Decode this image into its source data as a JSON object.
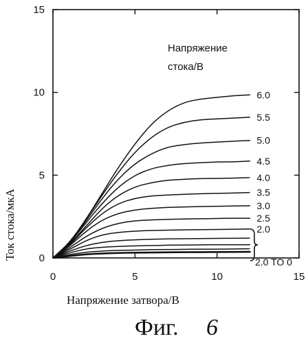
{
  "chart_data": {
    "type": "line",
    "xlabel": "Напряжение затвора/В",
    "ylabel": "Ток стока/мкА",
    "xlim": [
      0,
      15
    ],
    "ylim": [
      0,
      15
    ],
    "xticks": [
      "0",
      "5",
      "10",
      "15"
    ],
    "yticks": [
      "0",
      "5",
      "10",
      "15"
    ],
    "legend_title_line1": "Напряжение",
    "legend_title_line2": "стока/В",
    "caption_text": "Фиг.",
    "caption_number": "6",
    "series": [
      {
        "name": "6.0",
        "values": [
          [
            0,
            0
          ],
          [
            1,
            0.9
          ],
          [
            2,
            2.3
          ],
          [
            3,
            3.9
          ],
          [
            4,
            5.5
          ],
          [
            5,
            6.9
          ],
          [
            6,
            8.1
          ],
          [
            7,
            8.9
          ],
          [
            8,
            9.4
          ],
          [
            9,
            9.6
          ],
          [
            10,
            9.7
          ],
          [
            11,
            9.8
          ],
          [
            12,
            9.85
          ]
        ]
      },
      {
        "name": "5.5",
        "values": [
          [
            0,
            0
          ],
          [
            1,
            0.9
          ],
          [
            2,
            2.3
          ],
          [
            3,
            3.8
          ],
          [
            4,
            5.2
          ],
          [
            5,
            6.4
          ],
          [
            6,
            7.3
          ],
          [
            7,
            7.9
          ],
          [
            8,
            8.2
          ],
          [
            9,
            8.35
          ],
          [
            10,
            8.4
          ],
          [
            11,
            8.45
          ],
          [
            12,
            8.5
          ]
        ]
      },
      {
        "name": "5.0",
        "values": [
          [
            0,
            0
          ],
          [
            1,
            0.9
          ],
          [
            2,
            2.2
          ],
          [
            3,
            3.6
          ],
          [
            4,
            4.8
          ],
          [
            5,
            5.7
          ],
          [
            6,
            6.3
          ],
          [
            7,
            6.7
          ],
          [
            8,
            6.85
          ],
          [
            9,
            6.95
          ],
          [
            10,
            7.0
          ],
          [
            11,
            7.05
          ],
          [
            12,
            7.1
          ]
        ]
      },
      {
        "name": "4.5",
        "values": [
          [
            0,
            0
          ],
          [
            1,
            0.85
          ],
          [
            2,
            2.1
          ],
          [
            3,
            3.3
          ],
          [
            4,
            4.3
          ],
          [
            5,
            5.0
          ],
          [
            6,
            5.4
          ],
          [
            7,
            5.6
          ],
          [
            8,
            5.7
          ],
          [
            9,
            5.75
          ],
          [
            10,
            5.8
          ],
          [
            11,
            5.8
          ],
          [
            12,
            5.85
          ]
        ]
      },
      {
        "name": "4.0",
        "values": [
          [
            0,
            0
          ],
          [
            1,
            0.8
          ],
          [
            2,
            1.9
          ],
          [
            3,
            3.0
          ],
          [
            4,
            3.8
          ],
          [
            5,
            4.3
          ],
          [
            6,
            4.55
          ],
          [
            7,
            4.7
          ],
          [
            8,
            4.75
          ],
          [
            9,
            4.8
          ],
          [
            10,
            4.8
          ],
          [
            11,
            4.82
          ],
          [
            12,
            4.85
          ]
        ]
      },
      {
        "name": "3.5",
        "values": [
          [
            0,
            0
          ],
          [
            1,
            0.75
          ],
          [
            2,
            1.8
          ],
          [
            3,
            2.7
          ],
          [
            4,
            3.3
          ],
          [
            5,
            3.6
          ],
          [
            6,
            3.75
          ],
          [
            7,
            3.8
          ],
          [
            8,
            3.85
          ],
          [
            9,
            3.88
          ],
          [
            10,
            3.9
          ],
          [
            11,
            3.92
          ],
          [
            12,
            3.95
          ]
        ]
      },
      {
        "name": "3.0",
        "values": [
          [
            0,
            0
          ],
          [
            1,
            0.7
          ],
          [
            2,
            1.6
          ],
          [
            3,
            2.3
          ],
          [
            4,
            2.7
          ],
          [
            5,
            2.9
          ],
          [
            6,
            3.0
          ],
          [
            7,
            3.05
          ],
          [
            8,
            3.08
          ],
          [
            9,
            3.1
          ],
          [
            10,
            3.12
          ],
          [
            11,
            3.14
          ],
          [
            12,
            3.15
          ]
        ]
      },
      {
        "name": "2.5",
        "values": [
          [
            0,
            0
          ],
          [
            1,
            0.6
          ],
          [
            2,
            1.3
          ],
          [
            3,
            1.8
          ],
          [
            4,
            2.1
          ],
          [
            5,
            2.25
          ],
          [
            6,
            2.3
          ],
          [
            7,
            2.33
          ],
          [
            8,
            2.35
          ],
          [
            9,
            2.37
          ],
          [
            10,
            2.38
          ],
          [
            11,
            2.4
          ],
          [
            12,
            2.4
          ]
        ]
      },
      {
        "name": "2.0",
        "values": [
          [
            0,
            0
          ],
          [
            1,
            0.5
          ],
          [
            2,
            1.05
          ],
          [
            3,
            1.4
          ],
          [
            4,
            1.55
          ],
          [
            5,
            1.62
          ],
          [
            6,
            1.66
          ],
          [
            7,
            1.68
          ],
          [
            8,
            1.7
          ],
          [
            9,
            1.71
          ],
          [
            10,
            1.72
          ],
          [
            11,
            1.73
          ],
          [
            12,
            1.75
          ]
        ]
      },
      {
        "name": "",
        "values": [
          [
            0,
            0
          ],
          [
            1,
            0.4
          ],
          [
            2,
            0.75
          ],
          [
            3,
            0.95
          ],
          [
            4,
            1.05
          ],
          [
            5,
            1.1
          ],
          [
            6,
            1.13
          ],
          [
            7,
            1.15
          ],
          [
            8,
            1.16
          ],
          [
            9,
            1.17
          ],
          [
            10,
            1.18
          ],
          [
            11,
            1.19
          ],
          [
            12,
            1.2
          ]
        ]
      },
      {
        "name": "",
        "values": [
          [
            0,
            0
          ],
          [
            1,
            0.3
          ],
          [
            2,
            0.55
          ],
          [
            3,
            0.65
          ],
          [
            4,
            0.7
          ],
          [
            5,
            0.73
          ],
          [
            6,
            0.75
          ],
          [
            7,
            0.77
          ],
          [
            8,
            0.78
          ],
          [
            9,
            0.79
          ],
          [
            10,
            0.8
          ],
          [
            11,
            0.8
          ],
          [
            12,
            0.8
          ]
        ]
      },
      {
        "name": "",
        "values": [
          [
            0,
            0
          ],
          [
            1,
            0.2
          ],
          [
            2,
            0.35
          ],
          [
            3,
            0.42
          ],
          [
            4,
            0.46
          ],
          [
            5,
            0.48
          ],
          [
            6,
            0.5
          ],
          [
            7,
            0.51
          ],
          [
            8,
            0.52
          ],
          [
            9,
            0.53
          ],
          [
            10,
            0.53
          ],
          [
            11,
            0.54
          ],
          [
            12,
            0.55
          ]
        ]
      },
      {
        "name": "",
        "values": [
          [
            0,
            0
          ],
          [
            1,
            0.12
          ],
          [
            2,
            0.22
          ],
          [
            3,
            0.27
          ],
          [
            4,
            0.3
          ],
          [
            5,
            0.32
          ],
          [
            6,
            0.33
          ],
          [
            7,
            0.34
          ],
          [
            8,
            0.35
          ],
          [
            9,
            0.35
          ],
          [
            10,
            0.36
          ],
          [
            11,
            0.36
          ],
          [
            12,
            0.37
          ]
        ]
      }
    ],
    "grouped_label": "2.0 TO 0"
  }
}
